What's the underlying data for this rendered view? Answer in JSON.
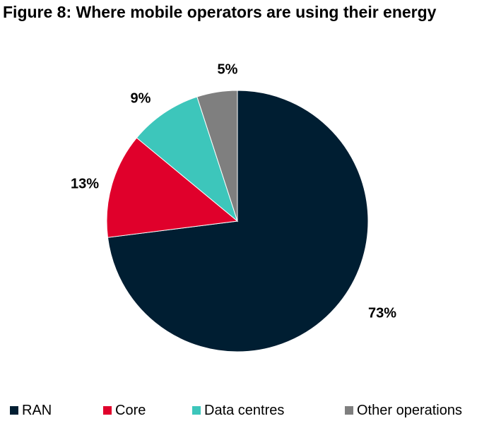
{
  "title": "Figure 8: Where mobile operators are using their energy",
  "chart_data": {
    "type": "pie",
    "categories": [
      "RAN",
      "Core",
      "Data centres",
      "Other operations"
    ],
    "values": [
      73,
      13,
      9,
      5
    ],
    "labels": [
      "73%",
      "13%",
      "9%",
      "5%"
    ],
    "colors": [
      "#001e32",
      "#e0002b",
      "#3dc6bb",
      "#7f7f7f"
    ],
    "legend_position": "bottom",
    "start_angle_deg": 0,
    "direction": "clockwise"
  }
}
